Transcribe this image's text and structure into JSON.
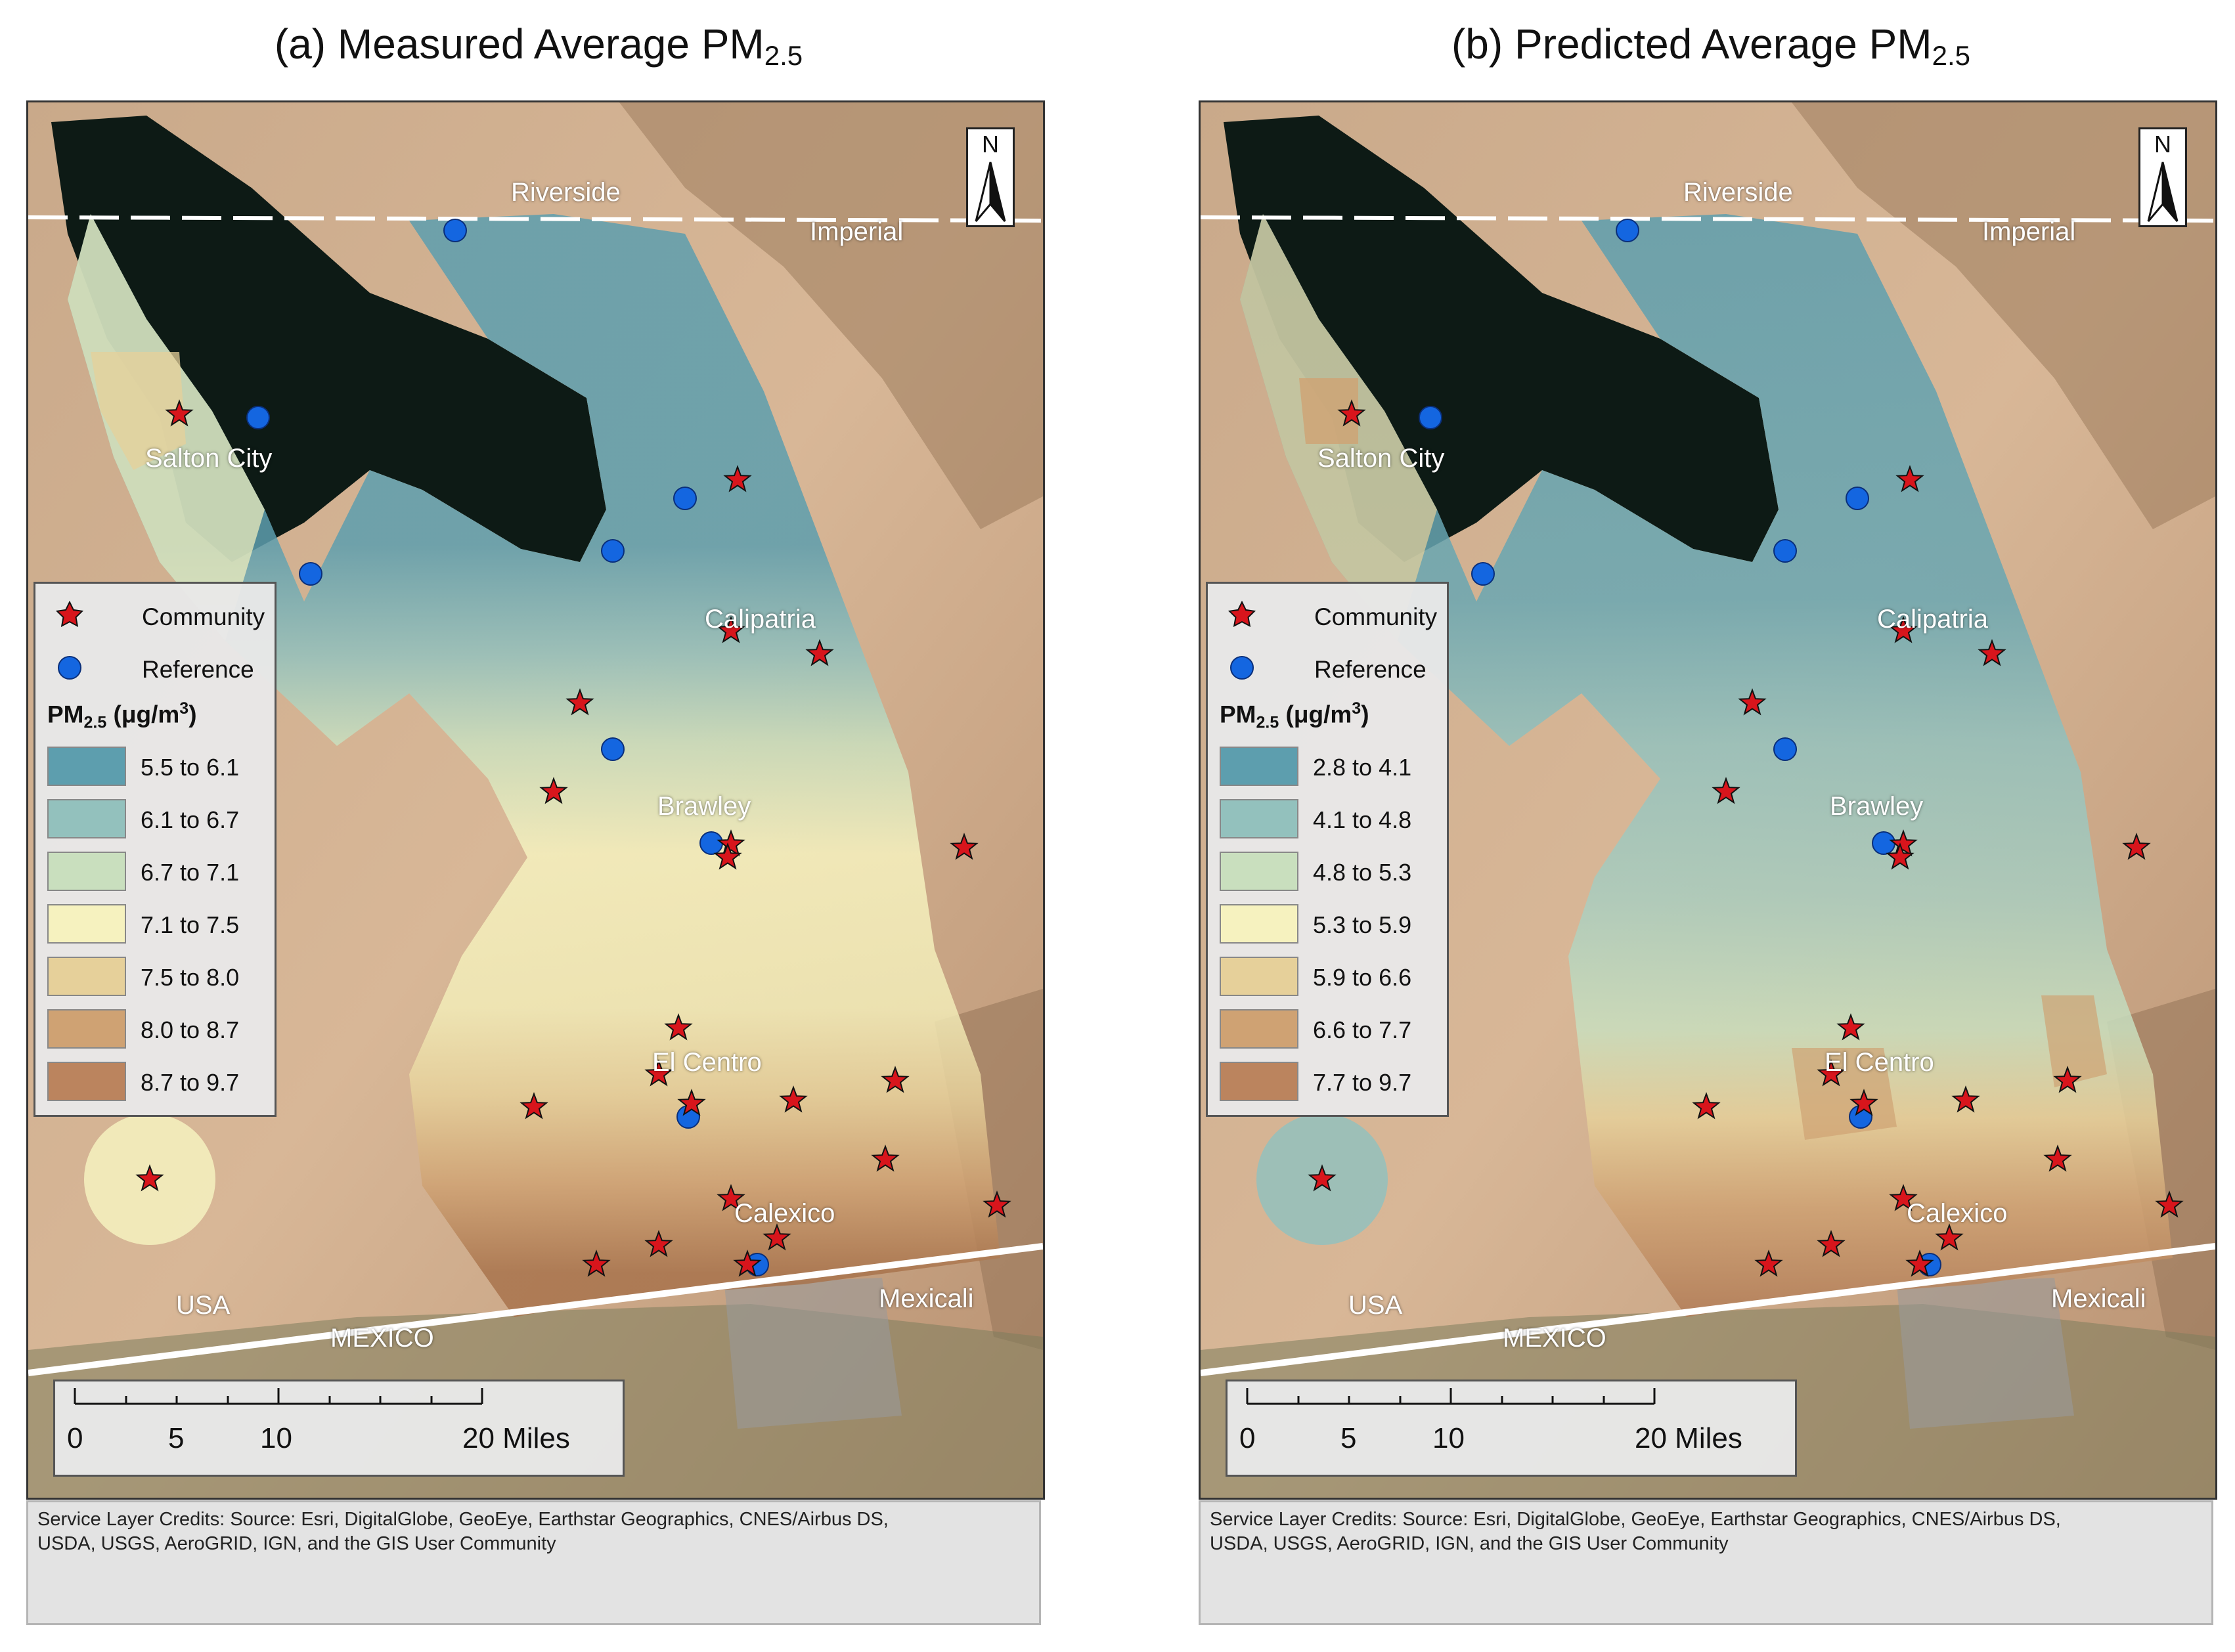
{
  "panels": [
    {
      "id": "a",
      "title_prefix": "(a) Measured Average PM",
      "title_sub": "2.5",
      "legend": {
        "community": "Community",
        "reference": "Reference",
        "units_prefix": "PM",
        "units_sub": "2.5",
        "units_suffix_pre": " (μg/m",
        "units_sup": "3",
        "units_suffix_post": ")",
        "classes": [
          {
            "label": "5.5 to 6.1",
            "color": "#5d9eae"
          },
          {
            "label": "6.1 to 6.7",
            "color": "#93c1bd"
          },
          {
            "label": "6.7 to 7.1",
            "color": "#c9dfbe"
          },
          {
            "label": "7.1 to 7.5",
            "color": "#f6f2bf"
          },
          {
            "label": "7.5 to 8.0",
            "color": "#e6d09a"
          },
          {
            "label": "8.0 to 8.7",
            "color": "#cfa273"
          },
          {
            "label": "8.7 to 9.7",
            "color": "#bb845e"
          }
        ]
      }
    },
    {
      "id": "b",
      "title_prefix": "(b) Predicted Average PM",
      "title_sub": "2.5",
      "legend": {
        "community": "Community",
        "reference": "Reference",
        "units_prefix": "PM",
        "units_sub": "2.5",
        "units_suffix_pre": " (μg/m",
        "units_sup": "3",
        "units_suffix_post": ")",
        "classes": [
          {
            "label": "2.8 to 4.1",
            "color": "#5d9eae"
          },
          {
            "label": "4.1 to 4.8",
            "color": "#93c1bd"
          },
          {
            "label": "4.8 to 5.3",
            "color": "#c9dfbe"
          },
          {
            "label": "5.3 to 5.9",
            "color": "#f6f2bf"
          },
          {
            "label": "5.9 to 6.6",
            "color": "#e6d09a"
          },
          {
            "label": "6.6 to 7.7",
            "color": "#cfa273"
          },
          {
            "label": "7.7 to 9.7",
            "color": "#bb845e"
          }
        ]
      }
    }
  ],
  "place_labels": {
    "riverside": "Riverside",
    "imperial": "Imperial",
    "salton_city": "Salton City",
    "calipatria": "Calipatria",
    "brawley": "Brawley",
    "el_centro": "El Centro",
    "calexico": "Calexico",
    "mexicali": "Mexicali",
    "usa": "USA",
    "mexico": "MEXICO"
  },
  "north_arrow": "N",
  "scale_bar": {
    "ticks": [
      "0",
      "5",
      "10",
      "20 Miles"
    ]
  },
  "credits_line1": "Service Layer Credits:  Source: Esri, DigitalGlobe, GeoEye, Earthstar Geographics, CNES/Airbus DS,",
  "credits_line2": "USDA, USGS, AeroGRID, IGN, and the GIS User Community",
  "symbol_colors": {
    "community": "#d8151c",
    "reference": "#1466e0"
  }
}
